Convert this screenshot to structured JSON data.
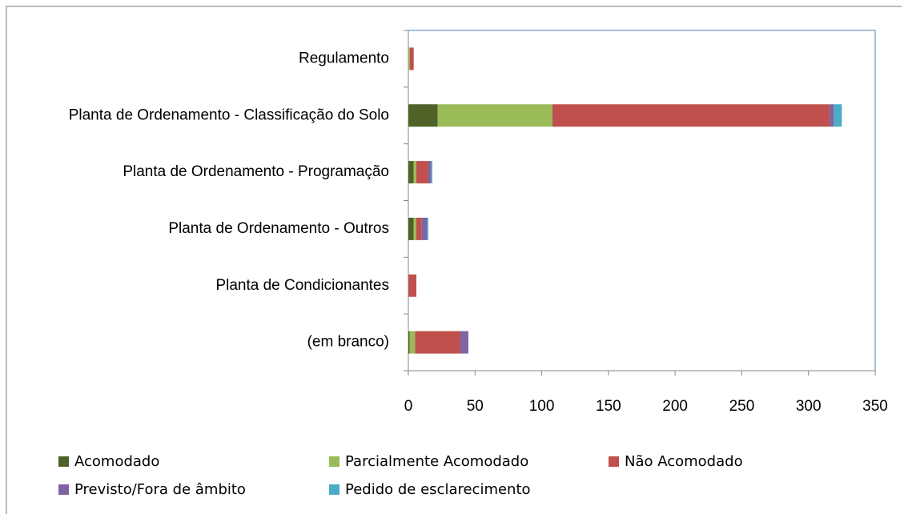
{
  "chart_data": {
    "type": "stacked-bar-horizontal",
    "categories": [
      "Regulamento",
      "Planta de Ordenamento - Classificação do Solo",
      "Planta de Ordenamento - Programação",
      "Planta de Ordenamento - Outros",
      "Planta de Condicionantes",
      "(em branco)"
    ],
    "series": [
      {
        "name": "Acomodado",
        "color": "#4f6228",
        "values": [
          0,
          22,
          4,
          4,
          0,
          1
        ]
      },
      {
        "name": "Parcialmente Acomodado",
        "color": "#9bbb59",
        "values": [
          1,
          86,
          2,
          2,
          0,
          4
        ]
      },
      {
        "name": "Não Acomodado",
        "color": "#c0504d",
        "values": [
          3,
          208,
          9,
          4,
          6,
          34
        ]
      },
      {
        "name": "Previsto/Fora de âmbito",
        "color": "#8064a2",
        "values": [
          0,
          3,
          2,
          4,
          0,
          6
        ]
      },
      {
        "name": "Pedido de esclarecimento",
        "color": "#4bacc6",
        "values": [
          0,
          6,
          1,
          1,
          0,
          0
        ]
      }
    ],
    "xlim": [
      0,
      350
    ],
    "xticks": [
      0,
      50,
      100,
      150,
      200,
      250,
      300,
      350
    ],
    "legend": "bottom"
  }
}
